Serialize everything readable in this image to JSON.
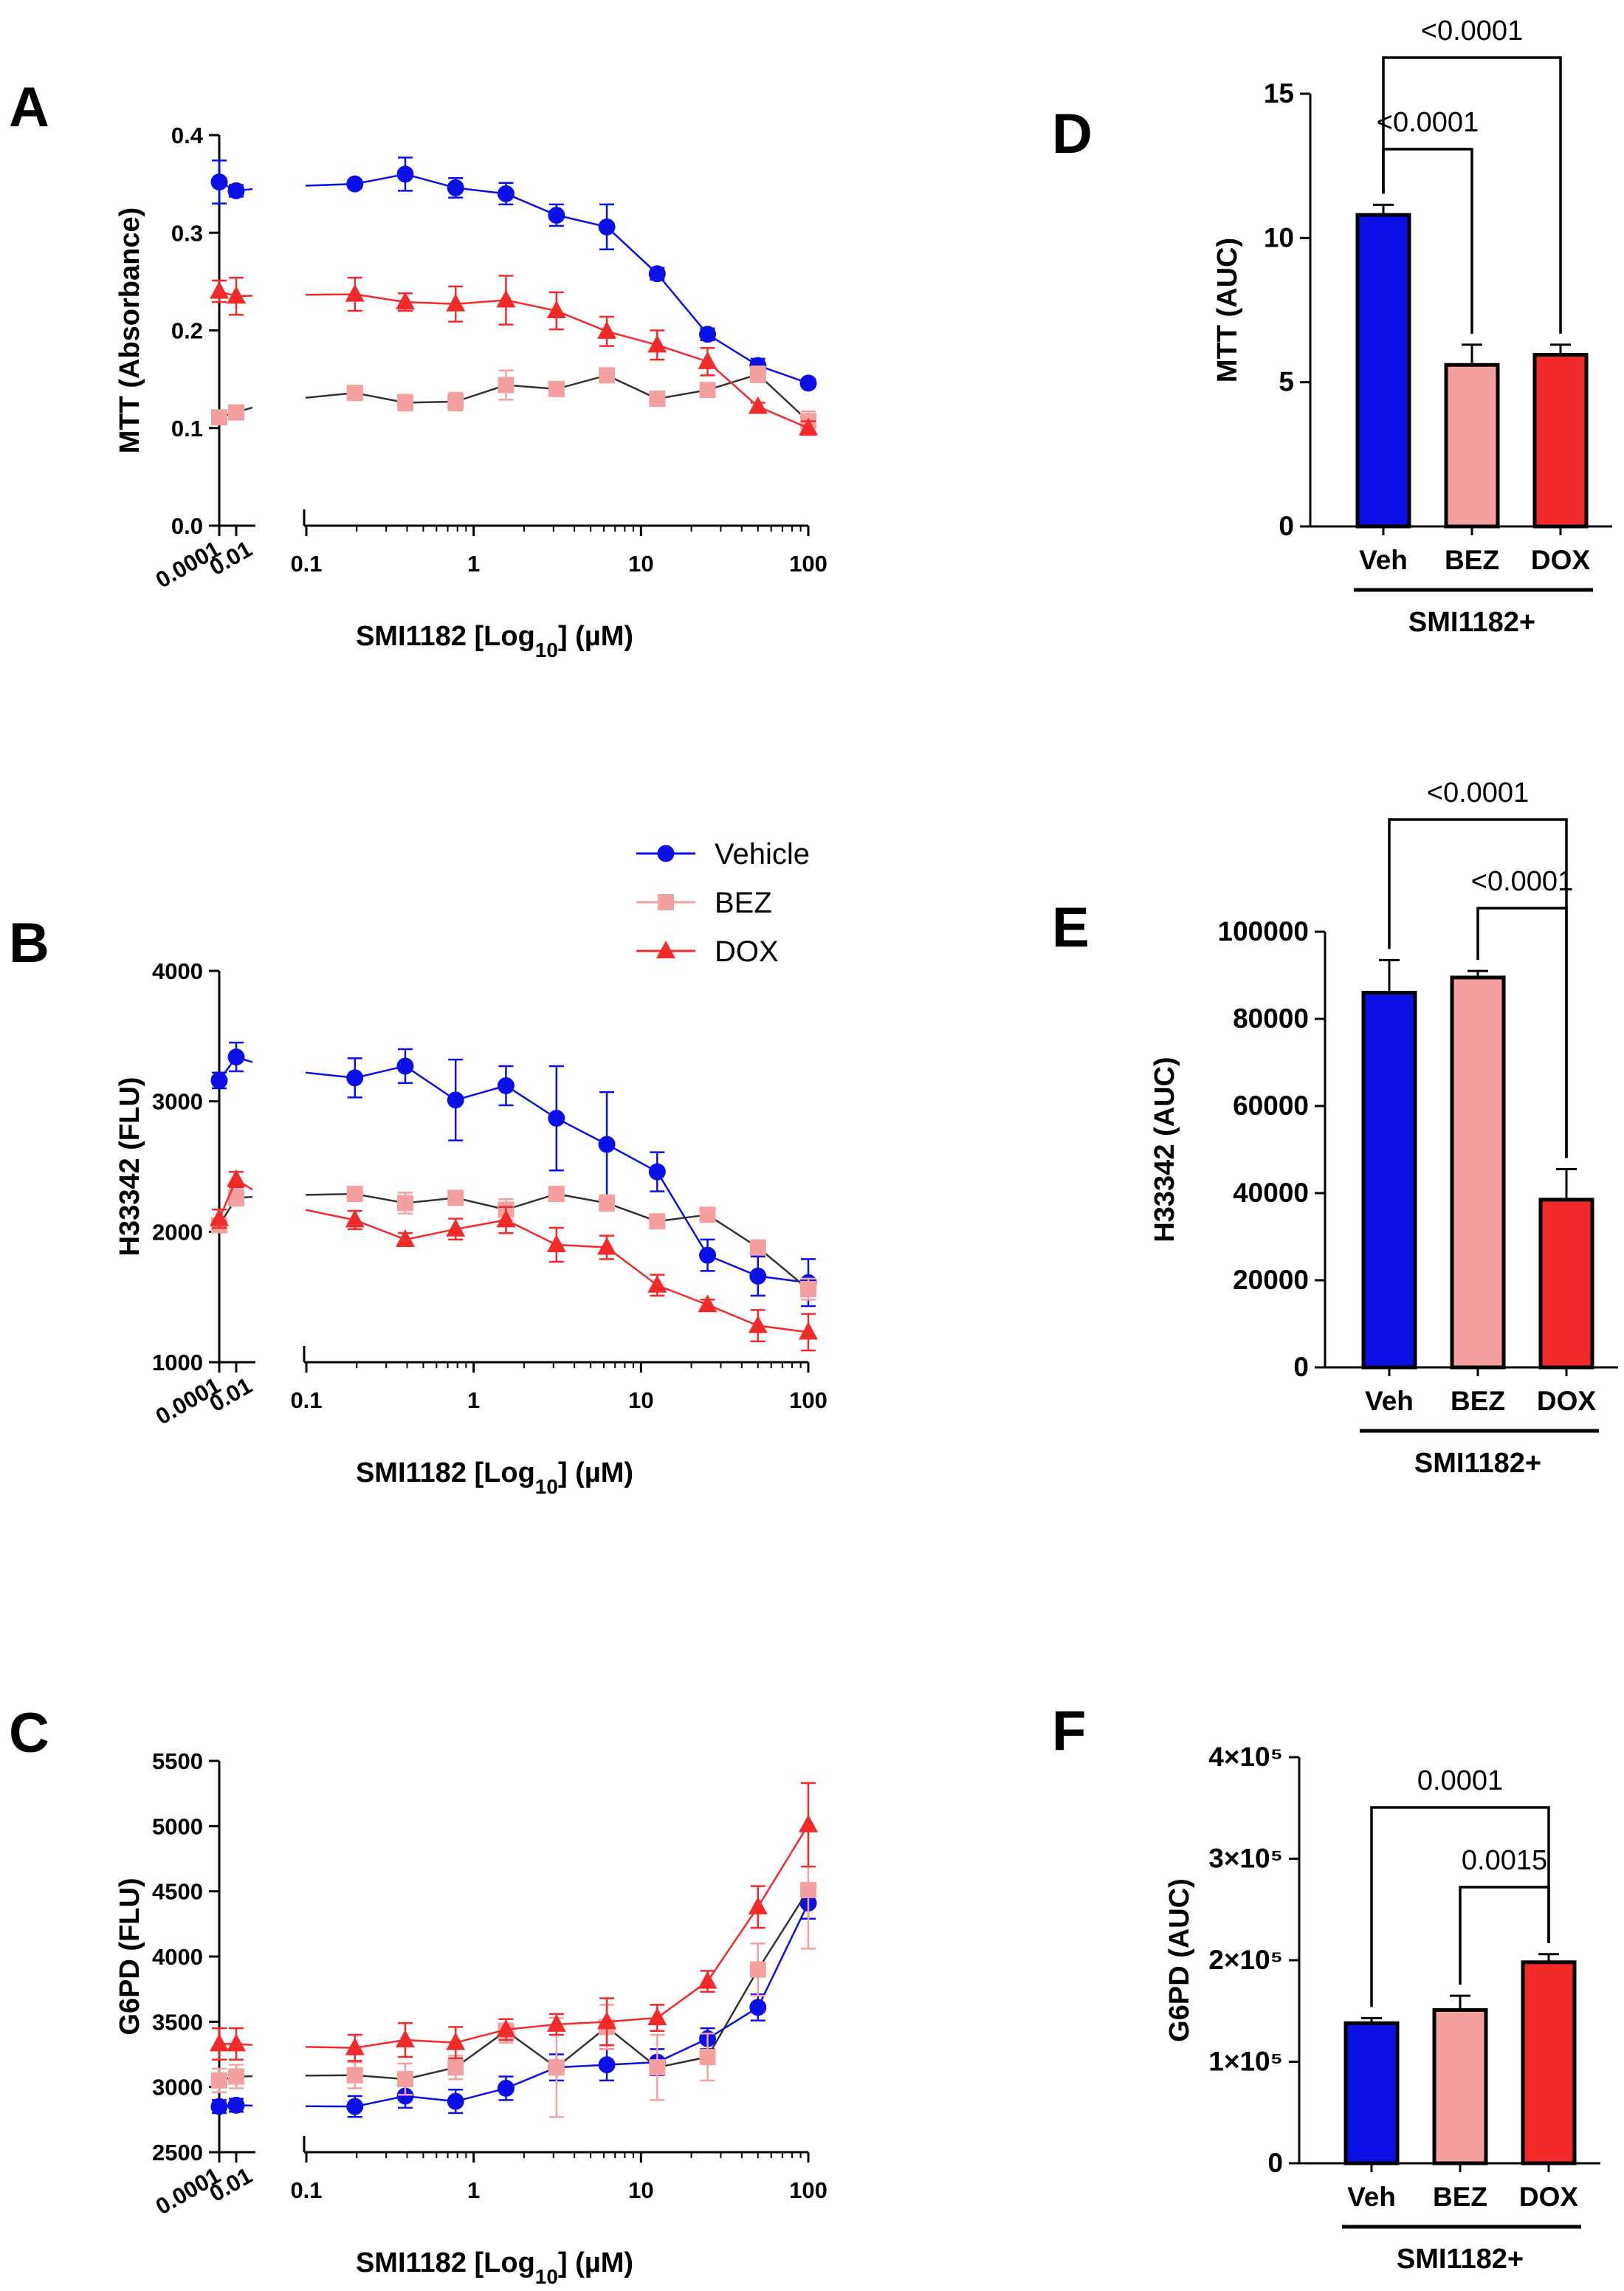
{
  "colors": {
    "vehicle": "#0a10e6",
    "bez": "#f5a0a0",
    "dox": "#f22a2a",
    "bez_line": "#333333",
    "axis": "#000000"
  },
  "legend": {
    "items": [
      {
        "name": "Vehicle",
        "color": "#0a10e6",
        "marker": "circle"
      },
      {
        "name": "BEZ",
        "color": "#f5a0a0",
        "marker": "square"
      },
      {
        "name": "DOX",
        "color": "#f22a2a",
        "marker": "triangle"
      }
    ]
  },
  "chart_data": [
    {
      "panel": "A",
      "type": "line",
      "title": "",
      "xlabel": "SMI1182 [Log10] (µM)",
      "xlabel_parts": {
        "main": "SMI1182 [Log",
        "sub": "10",
        "tail": "] (µM)"
      },
      "ylabel": "MTT (Absorbance)",
      "xscale": "log (broken axis)",
      "ylim": [
        0.0,
        0.4
      ],
      "yticks": [
        0.0,
        0.1,
        0.2,
        0.3,
        0.4
      ],
      "ytick_labels": [
        "0.0",
        "0.1",
        "0.2",
        "0.3",
        "0.4"
      ],
      "x_low": [
        0.0001,
        0.01
      ],
      "x_low_labels": [
        "0.0001",
        "0.01"
      ],
      "xticks_main": [
        0.1,
        1,
        10,
        100
      ],
      "xtick_main_labels": [
        "0.1",
        "1",
        "10",
        "100"
      ],
      "x": [
        0.0001,
        0.01,
        0.195,
        0.39,
        0.78,
        1.56,
        3.125,
        6.25,
        12.5,
        25,
        50,
        100
      ],
      "series": [
        {
          "name": "Vehicle",
          "marker": "circle",
          "values": [
            0.352,
            0.343,
            0.35,
            0.36,
            0.346,
            0.34,
            0.318,
            0.306,
            0.258,
            0.196,
            0.164,
            0.146
          ],
          "errors": [
            0.022,
            0.006,
            0.004,
            0.017,
            0.01,
            0.011,
            0.011,
            0.023,
            0.006,
            0.006,
            0.007,
            0.004
          ]
        },
        {
          "name": "BEZ",
          "marker": "square",
          "values": [
            0.111,
            0.116,
            0.136,
            0.126,
            0.127,
            0.144,
            0.14,
            0.154,
            0.13,
            0.139,
            0.155,
            0.107
          ],
          "errors": [
            0.004,
            0.004,
            0.004,
            0.008,
            0.009,
            0.015,
            0.004,
            0.004,
            0.006,
            0.005,
            0.008,
            0.01
          ]
        },
        {
          "name": "DOX",
          "marker": "triangle",
          "values": [
            0.24,
            0.235,
            0.237,
            0.229,
            0.227,
            0.231,
            0.22,
            0.199,
            0.185,
            0.168,
            0.122,
            0.1
          ],
          "errors": [
            0.011,
            0.019,
            0.017,
            0.009,
            0.018,
            0.025,
            0.019,
            0.015,
            0.015,
            0.014,
            0.004,
            0.007
          ]
        }
      ]
    },
    {
      "panel": "B",
      "type": "line",
      "title": "",
      "xlabel": "SMI1182 [Log10] (µM)",
      "xlabel_parts": {
        "main": "SMI1182 [Log",
        "sub": "10",
        "tail": "] (µM)"
      },
      "ylabel": "H33342 (FLU)",
      "xscale": "log (broken axis)",
      "ylim": [
        1000,
        4000
      ],
      "yticks": [
        1000,
        2000,
        3000,
        4000
      ],
      "ytick_labels": [
        "1000",
        "2000",
        "3000",
        "4000"
      ],
      "x_low": [
        0.0001,
        0.01
      ],
      "x_low_labels": [
        "0.0001",
        "0.01"
      ],
      "xticks_main": [
        0.1,
        1,
        10,
        100
      ],
      "xtick_main_labels": [
        "0.1",
        "1",
        "10",
        "100"
      ],
      "x": [
        0.0001,
        0.01,
        0.195,
        0.39,
        0.78,
        1.56,
        3.125,
        6.25,
        12.5,
        25,
        50,
        100
      ],
      "series": [
        {
          "name": "Vehicle",
          "marker": "circle",
          "values": [
            3160,
            3340,
            3180,
            3270,
            3010,
            3120,
            2870,
            2670,
            2460,
            1820,
            1660,
            1610
          ],
          "errors": [
            60,
            110,
            150,
            130,
            310,
            150,
            400,
            400,
            150,
            120,
            150,
            180
          ]
        },
        {
          "name": "BEZ",
          "marker": "square",
          "values": [
            2050,
            2260,
            2290,
            2220,
            2260,
            2170,
            2290,
            2220,
            2080,
            2130,
            1880,
            1560
          ],
          "errors": [
            40,
            60,
            40,
            80,
            40,
            80,
            50,
            60,
            40,
            50,
            40,
            80
          ]
        },
        {
          "name": "DOX",
          "marker": "triangle",
          "values": [
            2100,
            2400,
            2090,
            1940,
            2020,
            2090,
            1900,
            1880,
            1590,
            1440,
            1280,
            1230
          ],
          "errors": [
            70,
            60,
            70,
            50,
            80,
            100,
            130,
            90,
            80,
            40,
            120,
            140
          ]
        }
      ]
    },
    {
      "panel": "C",
      "type": "line",
      "title": "",
      "xlabel": "SMI1182 [Log10] (µM)",
      "xlabel_parts": {
        "main": "SMI1182 [Log",
        "sub": "10",
        "tail": "] (µM)"
      },
      "ylabel": "G6PD (FLU)",
      "xscale": "log (broken axis)",
      "ylim": [
        2500,
        5500
      ],
      "yticks": [
        2500,
        3000,
        3500,
        4000,
        4500,
        5000,
        5500
      ],
      "ytick_labels": [
        "2500",
        "3000",
        "3500",
        "4000",
        "4500",
        "5000",
        "5500"
      ],
      "x_low": [
        0.0001,
        0.01
      ],
      "x_low_labels": [
        "0.0001",
        "0.01"
      ],
      "xticks_main": [
        0.1,
        1,
        10,
        100
      ],
      "xtick_main_labels": [
        "0.1",
        "1",
        "10",
        "100"
      ],
      "x": [
        0.0001,
        0.01,
        0.195,
        0.39,
        0.78,
        1.56,
        3.125,
        6.25,
        12.5,
        25,
        50,
        100
      ],
      "series": [
        {
          "name": "Vehicle",
          "marker": "circle",
          "values": [
            2850,
            2860,
            2850,
            2930,
            2890,
            2990,
            3150,
            3170,
            3190,
            3370,
            3610,
            4410
          ],
          "errors": [
            50,
            50,
            80,
            90,
            90,
            90,
            100,
            120,
            100,
            80,
            100,
            120
          ]
        },
        {
          "name": "BEZ",
          "marker": "square",
          "values": [
            3050,
            3080,
            3090,
            3060,
            3150,
            3430,
            3150,
            3460,
            3150,
            3230,
            3900,
            4510
          ],
          "errors": [
            90,
            90,
            100,
            120,
            90,
            90,
            380,
            170,
            250,
            180,
            200,
            450
          ]
        },
        {
          "name": "DOX",
          "marker": "triangle",
          "values": [
            3330,
            3330,
            3300,
            3360,
            3340,
            3440,
            3480,
            3500,
            3530,
            3810,
            4380,
            5010
          ],
          "errors": [
            120,
            120,
            100,
            130,
            120,
            80,
            80,
            180,
            100,
            80,
            160,
            320
          ]
        }
      ]
    },
    {
      "panel": "D",
      "type": "bar",
      "title": "",
      "ylabel": "MTT (AUC)",
      "ylim": [
        0,
        15
      ],
      "yticks": [
        0,
        5,
        10,
        15
      ],
      "ytick_labels": [
        "0",
        "5",
        "10",
        "15"
      ],
      "categories": [
        "Veh",
        "BEZ",
        "DOX"
      ],
      "group_label": "SMI1182+",
      "values": [
        10.8,
        5.6,
        5.95
      ],
      "errors": [
        0.35,
        0.7,
        0.35
      ],
      "colors": [
        "#0a10e6",
        "#f5a0a0",
        "#f22a2a"
      ],
      "significance": [
        {
          "from": 0,
          "to": 1,
          "label": "<0.0001"
        },
        {
          "from": 0,
          "to": 2,
          "label": "<0.0001"
        }
      ]
    },
    {
      "panel": "E",
      "type": "bar",
      "title": "",
      "ylabel": "H33342 (AUC)",
      "ylim": [
        0,
        100000
      ],
      "yticks": [
        0,
        20000,
        40000,
        60000,
        80000,
        100000
      ],
      "ytick_labels": [
        "0",
        "20000",
        "40000",
        "60000",
        "80000",
        "100000"
      ],
      "categories": [
        "Veh",
        "BEZ",
        "DOX"
      ],
      "group_label": "SMI1182+",
      "values": [
        86000,
        89500,
        38500
      ],
      "errors": [
        7500,
        1500,
        7000
      ],
      "colors": [
        "#0a10e6",
        "#f5a0a0",
        "#f22a2a"
      ],
      "significance": [
        {
          "from": 0,
          "to": 2,
          "label": "<0.0001"
        },
        {
          "from": 1,
          "to": 2,
          "label": "<0.0001"
        }
      ]
    },
    {
      "panel": "F",
      "type": "bar",
      "title": "",
      "ylabel": "G6PD (AUC)",
      "ylim": [
        0,
        400000
      ],
      "yticks": [
        0,
        100000,
        200000,
        300000,
        400000
      ],
      "ytick_labels": [
        "0",
        "1×10⁵",
        "2×10⁵",
        "3×10⁵",
        "4×10⁵"
      ],
      "categories": [
        "Veh",
        "BEZ",
        "DOX"
      ],
      "group_label": "SMI1182+",
      "values": [
        138000,
        151000,
        198000
      ],
      "errors": [
        5000,
        14000,
        8000
      ],
      "colors": [
        "#0a10e6",
        "#f5a0a0",
        "#f22a2a"
      ],
      "significance": [
        {
          "from": 0,
          "to": 2,
          "label": "0.0001"
        },
        {
          "from": 1,
          "to": 2,
          "label": "0.0015"
        }
      ]
    }
  ]
}
